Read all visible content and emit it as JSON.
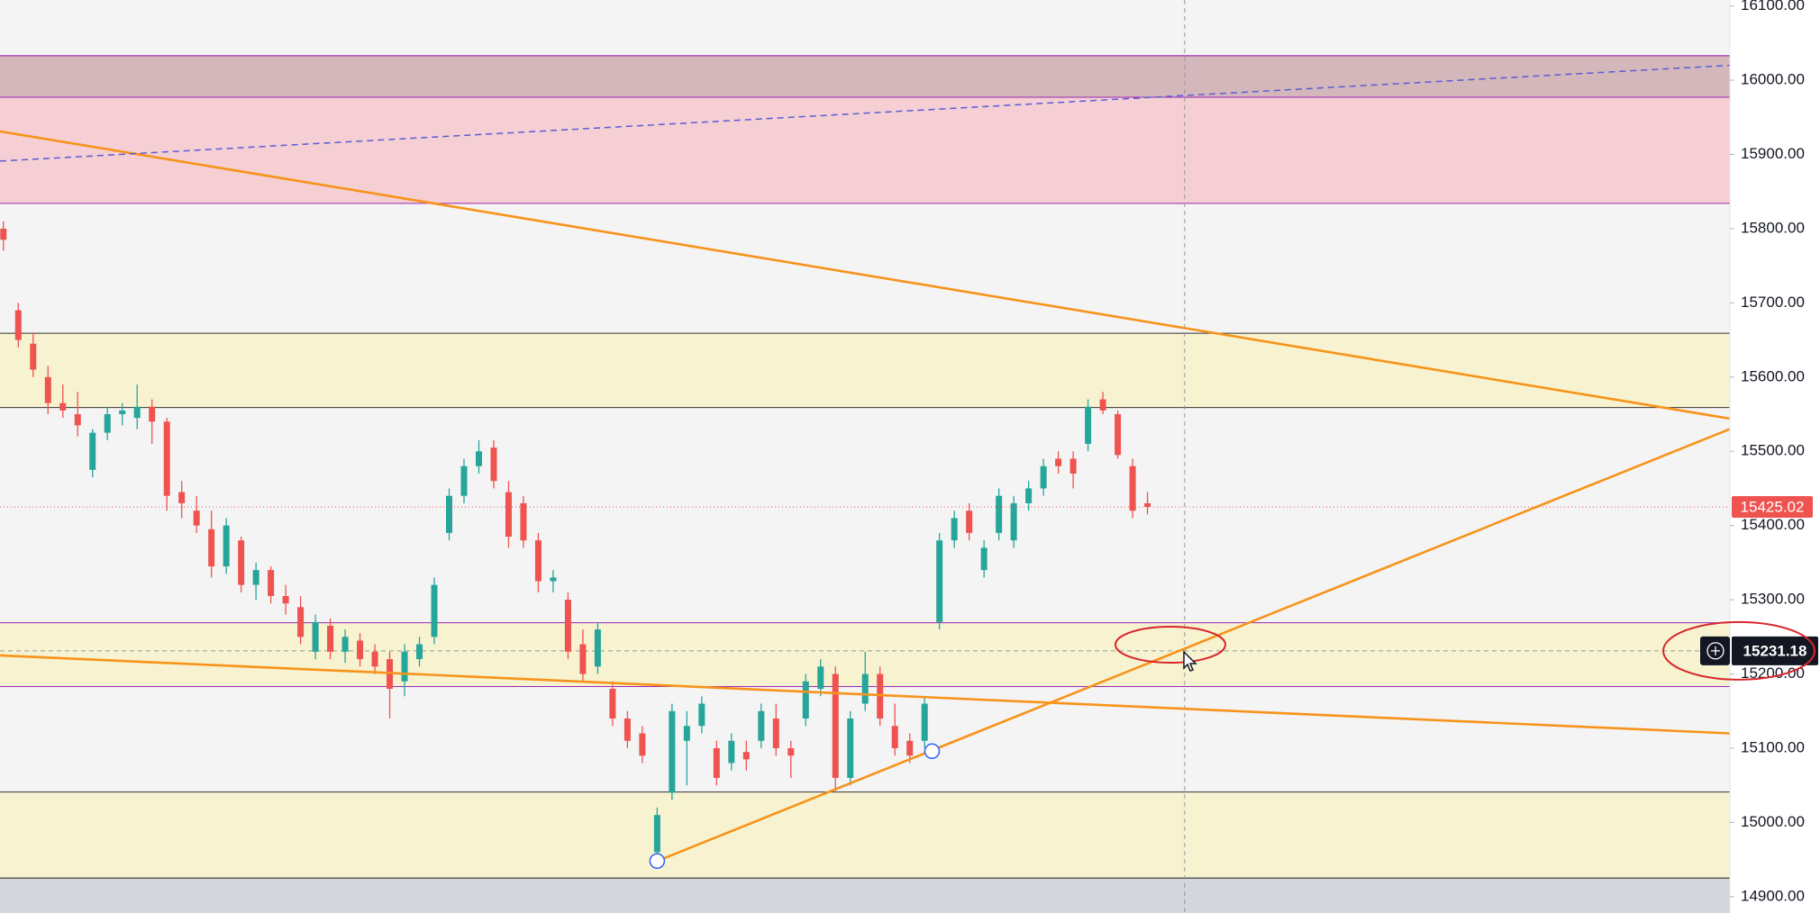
{
  "chart_data": {
    "type": "candlestick",
    "up_color": "#26a69a",
    "down_color": "#ef5350",
    "background": "#f4f4f4",
    "ylim": [
      14878,
      16108
    ],
    "xlim": [
      -0.23,
      116.2
    ],
    "yticks": [
      {
        "value": 14900,
        "label": "14900.00"
      },
      {
        "value": 15000,
        "label": "15000.00"
      },
      {
        "value": 15100,
        "label": "15100.00"
      },
      {
        "value": 15200,
        "label": "15200.00"
      },
      {
        "value": 15300,
        "label": "15300.00"
      },
      {
        "value": 15400,
        "label": "15400.00"
      },
      {
        "value": 15500,
        "label": "15500.00"
      },
      {
        "value": 15600,
        "label": "15600.00"
      },
      {
        "value": 15700,
        "label": "15700.00"
      },
      {
        "value": 15800,
        "label": "15800.00"
      },
      {
        "value": 15900,
        "label": "15900.00"
      },
      {
        "value": 16000,
        "label": "16000.00"
      },
      {
        "value": 16100,
        "label": "16100.00"
      }
    ],
    "zones": [
      {
        "ymin": 15834,
        "ymax": 16033,
        "color": "#f5cfd4",
        "border": "#9c27b0"
      },
      {
        "ymin": 15977,
        "ymax": 16033,
        "color": "rgba(110,110,110,0.25)",
        "border": "#9c27b0"
      },
      {
        "ymin": 15559,
        "ymax": 15659,
        "color": "#f7f2d0",
        "border": "#333333"
      },
      {
        "ymin": 15183,
        "ymax": 15269,
        "color": "#f7f2d0",
        "border": "#9c27b0"
      },
      {
        "ymin": 14925,
        "ymax": 15041,
        "color": "#f7f2d0",
        "border": "#333333"
      },
      {
        "ymin": 14850,
        "ymax": 14925,
        "color": "#d3d6da",
        "border": "#333333"
      }
    ],
    "trendlines": [
      {
        "x": [
          -0.23,
          116.2
        ],
        "y": [
          15931,
          15544
        ],
        "color": "#f7931a",
        "dashed": false
      },
      {
        "x": [
          -0.23,
          116.2
        ],
        "y": [
          15891,
          16020
        ],
        "color": "#5b5bd6",
        "dashed": true
      },
      {
        "x": [
          -0.23,
          116.2
        ],
        "y": [
          15225,
          15120
        ],
        "color": "#f7931a",
        "dashed": false
      },
      {
        "x": [
          44.0,
          116.2
        ],
        "y": [
          14948,
          15530
        ],
        "color": "#f7931a",
        "dashed": false,
        "handles": [
          {
            "x": 44.0,
            "y": 14948
          },
          {
            "x": 62.5,
            "y": 15096
          }
        ]
      }
    ],
    "crosshair": {
      "x": 79.5,
      "y": 15231.18
    },
    "candles": [
      [
        15800,
        15810,
        15770,
        15785
      ],
      [
        15690,
        15700,
        15640,
        15650
      ],
      [
        15645,
        15660,
        15600,
        15610
      ],
      [
        15600,
        15615,
        15550,
        15565
      ],
      [
        15565,
        15590,
        15545,
        15555
      ],
      [
        15550,
        15580,
        15520,
        15535
      ],
      [
        15475,
        15530,
        15465,
        15525
      ],
      [
        15525,
        15560,
        15515,
        15550
      ],
      [
        15550,
        15565,
        15535,
        15555
      ],
      [
        15545,
        15590,
        15530,
        15560
      ],
      [
        15560,
        15570,
        15510,
        15540
      ],
      [
        15540,
        15545,
        15420,
        15440
      ],
      [
        15445,
        15460,
        15410,
        15430
      ],
      [
        15420,
        15440,
        15390,
        15400
      ],
      [
        15395,
        15420,
        15330,
        15345
      ],
      [
        15345,
        15410,
        15335,
        15400
      ],
      [
        15380,
        15385,
        15310,
        15320
      ],
      [
        15320,
        15350,
        15300,
        15340
      ],
      [
        15340,
        15345,
        15295,
        15305
      ],
      [
        15305,
        15320,
        15280,
        15295
      ],
      [
        15290,
        15305,
        15240,
        15250
      ],
      [
        15230,
        15280,
        15220,
        15270
      ],
      [
        15265,
        15275,
        15220,
        15230
      ],
      [
        15230,
        15260,
        15215,
        15250
      ],
      [
        15245,
        15255,
        15210,
        15220
      ],
      [
        15230,
        15240,
        15200,
        15210
      ],
      [
        15220,
        15230,
        15140,
        15180
      ],
      [
        15190,
        15240,
        15170,
        15230
      ],
      [
        15220,
        15250,
        15210,
        15240
      ],
      [
        15250,
        15330,
        15240,
        15320
      ],
      [
        15390,
        15450,
        15380,
        15440
      ],
      [
        15440,
        15490,
        15430,
        15480
      ],
      [
        15480,
        15515,
        15470,
        15500
      ],
      [
        15505,
        15515,
        15450,
        15460
      ],
      [
        15445,
        15460,
        15370,
        15385
      ],
      [
        15430,
        15440,
        15370,
        15380
      ],
      [
        15380,
        15390,
        15310,
        15325
      ],
      [
        15325,
        15340,
        15310,
        15330
      ],
      [
        15300,
        15310,
        15220,
        15230
      ],
      [
        15240,
        15260,
        15190,
        15200
      ],
      [
        15210,
        15270,
        15200,
        15260
      ],
      [
        15180,
        15190,
        15130,
        15140
      ],
      [
        15140,
        15150,
        15100,
        15110
      ],
      [
        15120,
        15130,
        15080,
        15090
      ],
      [
        14960,
        15020,
        14945,
        15010
      ],
      [
        15040,
        15160,
        15030,
        15150
      ],
      [
        15110,
        15150,
        15050,
        15130
      ],
      [
        15130,
        15170,
        15120,
        15160
      ],
      [
        15100,
        15110,
        15050,
        15060
      ],
      [
        15080,
        15120,
        15070,
        15110
      ],
      [
        15095,
        15110,
        15070,
        15085
      ],
      [
        15110,
        15160,
        15100,
        15150
      ],
      [
        15140,
        15160,
        15090,
        15100
      ],
      [
        15100,
        15110,
        15060,
        15090
      ],
      [
        15140,
        15200,
        15130,
        15190
      ],
      [
        15180,
        15220,
        15170,
        15210
      ],
      [
        15200,
        15210,
        15040,
        15060
      ],
      [
        15060,
        15150,
        15050,
        15140
      ],
      [
        15160,
        15230,
        15150,
        15200
      ],
      [
        15200,
        15210,
        15130,
        15140
      ],
      [
        15130,
        15160,
        15090,
        15100
      ],
      [
        15110,
        15120,
        15080,
        15090
      ],
      [
        15110,
        15170,
        15100,
        15160
      ],
      [
        15270,
        15390,
        15260,
        15380
      ],
      [
        15380,
        15420,
        15370,
        15410
      ],
      [
        15420,
        15430,
        15380,
        15390
      ],
      [
        15340,
        15380,
        15330,
        15370
      ],
      [
        15390,
        15450,
        15380,
        15440
      ],
      [
        15380,
        15440,
        15370,
        15430
      ],
      [
        15430,
        15460,
        15420,
        15450
      ],
      [
        15450,
        15490,
        15440,
        15480
      ],
      [
        15490,
        15500,
        15470,
        15480
      ],
      [
        15490,
        15500,
        15450,
        15470
      ],
      [
        15510,
        15570,
        15500,
        15560
      ],
      [
        15570,
        15580,
        15550,
        15555
      ],
      [
        15550,
        15555,
        15490,
        15495
      ],
      [
        15480,
        15490,
        15410,
        15420
      ],
      [
        15430,
        15445,
        15415,
        15425.02
      ]
    ]
  }
}
